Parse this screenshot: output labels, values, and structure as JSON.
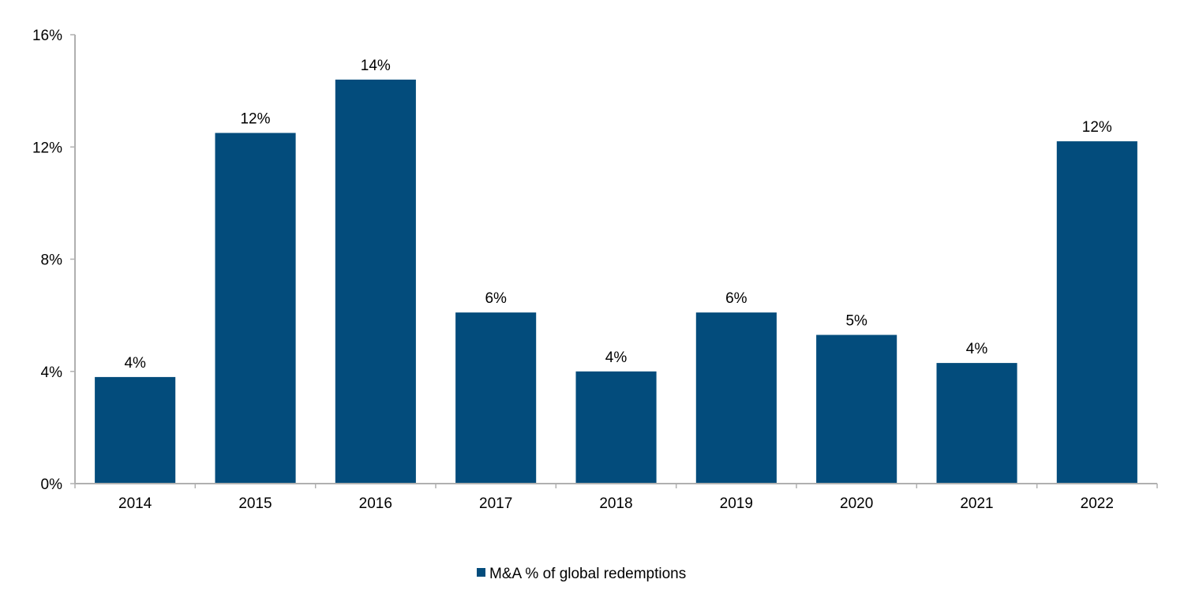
{
  "chart_data": {
    "type": "bar",
    "categories": [
      "2014",
      "2015",
      "2016",
      "2017",
      "2018",
      "2019",
      "2020",
      "2021",
      "2022"
    ],
    "series": [
      {
        "name": "M&A % of global redemptions",
        "values": [
          3.8,
          12.5,
          14.4,
          6.1,
          4.0,
          6.1,
          5.3,
          4.3,
          12.2
        ],
        "labels": [
          "4%",
          "12%",
          "14%",
          "6%",
          "4%",
          "6%",
          "5%",
          "4%",
          "12%"
        ],
        "color": "#034c7c"
      }
    ],
    "ylim": [
      0,
      16
    ],
    "yticks": [
      0,
      4,
      8,
      12,
      16
    ],
    "ytick_labels": [
      "0%",
      "4%",
      "8%",
      "12%",
      "16%"
    ],
    "title": "",
    "xlabel": "",
    "ylabel": "",
    "grid": false,
    "legend_position": "bottom",
    "axis_color": "#b0b0b0"
  }
}
